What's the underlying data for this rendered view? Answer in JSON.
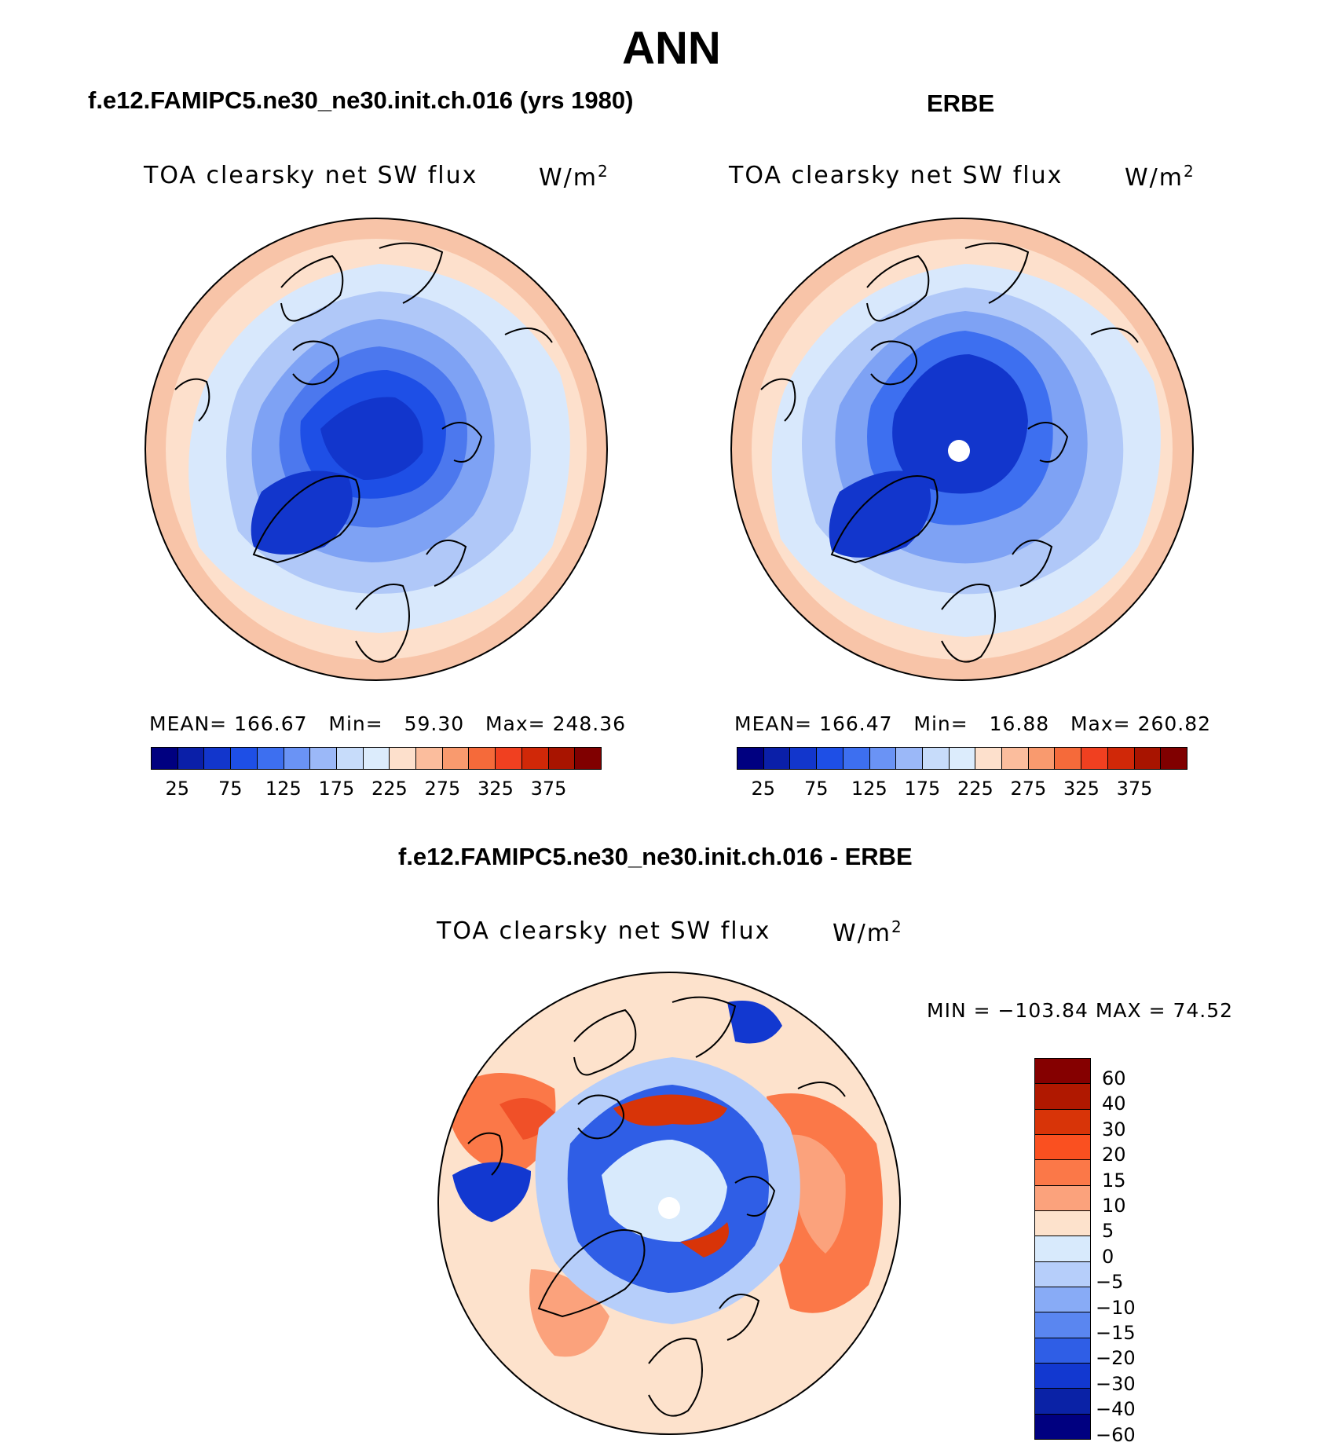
{
  "title": "ANN",
  "panels": {
    "model": {
      "header": "f.e12.FAMIPC5.ne30_ne30.init.ch.016 (yrs 1980)",
      "variable": "TOA clearsky net SW flux",
      "units": "W/m",
      "units_sup": "2",
      "stats": {
        "mean_label": "MEAN=",
        "mean": "166.67",
        "min_label": "Min=",
        "min": "59.30",
        "max_label": "Max=",
        "max": "248.36"
      }
    },
    "obs": {
      "header": "ERBE",
      "variable": "TOA clearsky net SW flux",
      "units": "W/m",
      "units_sup": "2",
      "stats": {
        "mean_label": "MEAN=",
        "mean": "166.47",
        "min_label": "Min=",
        "min": "16.88",
        "max_label": "Max=",
        "max": "260.82"
      }
    },
    "diff": {
      "header": "f.e12.FAMIPC5.ne30_ne30.init.ch.016 - ERBE",
      "variable": "TOA clearsky net SW flux",
      "units": "W/m",
      "units_sup": "2",
      "minmax": "MIN = −103.84 MAX =   74.52"
    }
  },
  "colorbar_abs": {
    "colors": [
      "#000080",
      "#0a1fa8",
      "#1236cc",
      "#1e4fe6",
      "#3d6ff0",
      "#6a93f5",
      "#9bb8f8",
      "#c7dcfa",
      "#dcecfc",
      "#fde0cc",
      "#fbbd9d",
      "#f99a6e",
      "#f56a3a",
      "#f04020",
      "#d02808",
      "#a81400",
      "#800000"
    ],
    "tick_labels": [
      "25",
      "75",
      "125",
      "175",
      "225",
      "275",
      "325",
      "375"
    ]
  },
  "colorbar_diff": {
    "colors": [
      "#850000",
      "#b01800",
      "#d83408",
      "#fa5020",
      "#fb7848",
      "#fba27c",
      "#fde2cc",
      "#d8eafc",
      "#b6cefa",
      "#88abf6",
      "#5a86f0",
      "#2f5ee6",
      "#1238d0",
      "#0a22a6",
      "#000080"
    ],
    "labels": [
      "60",
      "40",
      "30",
      "20",
      "15",
      "10",
      "5",
      "0",
      "−5",
      "−10",
      "−15",
      "−20",
      "−30",
      "−40",
      "−60"
    ]
  }
}
